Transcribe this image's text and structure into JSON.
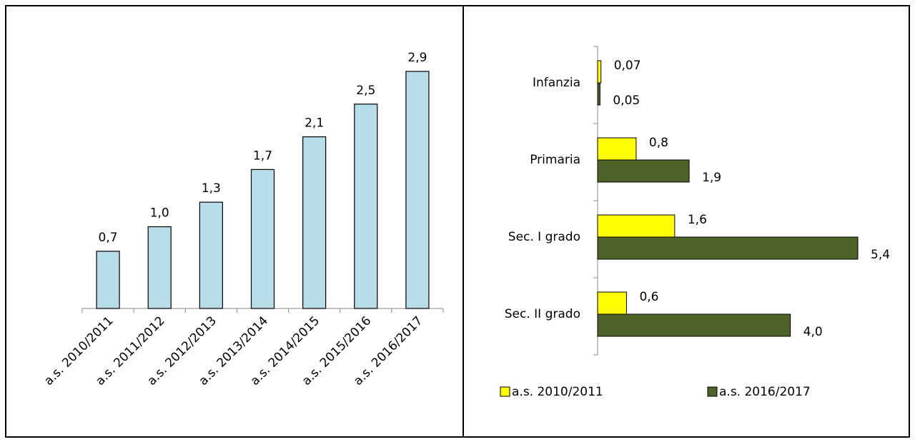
{
  "chart_data": [
    {
      "type": "bar",
      "categories": [
        "a.s. 2010/2011",
        "a.s. 2011/2012",
        "a.s. 2012/2013",
        "a.s. 2013/2014",
        "a.s. 2014/2015",
        "a.s. 2015/2016",
        "a.s. 2016/2017"
      ],
      "values": [
        0.7,
        1.0,
        1.3,
        1.7,
        2.1,
        2.5,
        2.9
      ],
      "value_labels": [
        "0,7",
        "1,0",
        "1,3",
        "1,7",
        "2,1",
        "2,5",
        "2,9"
      ],
      "color": "#b7dde8"
    },
    {
      "type": "hbar",
      "categories": [
        "Infanzia",
        "Primaria",
        "Sec. I grado",
        "Sec. II grado"
      ],
      "series": [
        {
          "name": "a.s. 2010/2011",
          "color": "#ffff00",
          "values": [
            0.07,
            0.8,
            1.6,
            0.6
          ],
          "value_labels": [
            "0,07",
            "0,8",
            "1,6",
            "0,6"
          ]
        },
        {
          "name": "a.s. 2016/2017",
          "color": "#4f6228",
          "values": [
            0.05,
            1.9,
            5.4,
            4.0
          ],
          "value_labels": [
            "0,05",
            "1,9",
            "5,4",
            "4,0"
          ]
        }
      ],
      "legend": "bottom"
    }
  ]
}
